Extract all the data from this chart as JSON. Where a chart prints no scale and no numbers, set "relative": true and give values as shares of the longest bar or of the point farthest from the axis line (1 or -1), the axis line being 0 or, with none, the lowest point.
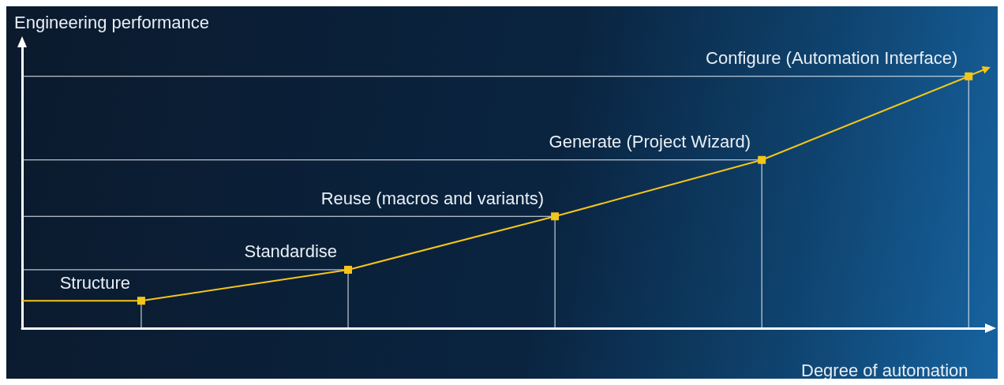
{
  "chart_data": {
    "type": "line",
    "xlabel": "Degree of automation",
    "ylabel": "Engineering performance",
    "categories": [
      null,
      null,
      null,
      null,
      null
    ],
    "relative": true,
    "series": [
      {
        "color": "#f5c518",
        "values": [
          0.109,
          0.232,
          0.444,
          0.668,
          1
        ]
      }
    ],
    "marker": "square",
    "annotations": [
      "Structure",
      "Standardise",
      "Reuse (macros and variants)",
      "Generate (Project Wizard)",
      "Configure (Automation Interface)"
    ]
  }
}
